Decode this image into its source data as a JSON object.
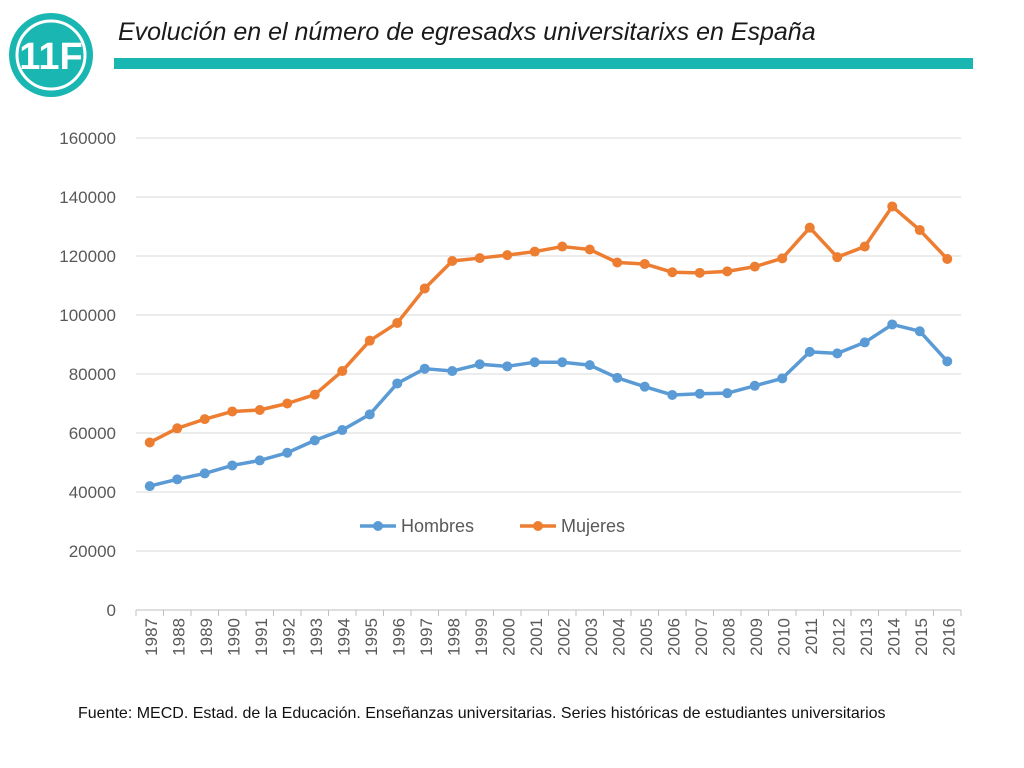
{
  "header": {
    "title": "Evolución en el número de egresadxs universitarixs en España",
    "logo_text": "11F",
    "accent_color": "#19b6b2"
  },
  "source": {
    "text": "Fuente: MECD. Estad. de la Educación. Enseñanzas universitarias. Series históricas de estudiantes universitarios"
  },
  "chart_data": {
    "type": "line",
    "title": "",
    "xlabel": "",
    "ylabel": "",
    "ylim": [
      0,
      160000
    ],
    "yticks": [
      "0",
      "20000",
      "40000",
      "60000",
      "80000",
      "100000",
      "120000",
      "140000",
      "160000"
    ],
    "grid": true,
    "legend": "inside-lower-center",
    "categories": [
      "1987",
      "1988",
      "1989",
      "1990",
      "1991",
      "1992",
      "1993",
      "1994",
      "1995",
      "1996",
      "1997",
      "1998",
      "1999",
      "2000",
      "2001",
      "2002",
      "2003",
      "2004",
      "2005",
      "2006",
      "2007",
      "2008",
      "2009",
      "2010",
      "2011",
      "2012",
      "2013",
      "2014",
      "2015",
      "2016"
    ],
    "series": [
      {
        "name": "Hombres",
        "color": "#5b9bd5",
        "values": [
          42000,
          44300,
          46300,
          49000,
          50700,
          53300,
          57500,
          61000,
          66300,
          76800,
          81800,
          81000,
          83300,
          82600,
          84000,
          84000,
          83000,
          78700,
          75700,
          72900,
          73300,
          73500,
          76000,
          78500,
          87500,
          87000,
          90700,
          96800,
          94500,
          84300
        ]
      },
      {
        "name": "Mujeres",
        "color": "#ed7d31",
        "values": [
          56800,
          61600,
          64700,
          67300,
          67800,
          70000,
          73000,
          81000,
          91300,
          97300,
          109000,
          118300,
          119300,
          120300,
          121500,
          123200,
          122200,
          117800,
          117300,
          114500,
          114300,
          114800,
          116400,
          119200,
          129600,
          119600,
          123200,
          136800,
          128800,
          119000
        ]
      }
    ]
  }
}
